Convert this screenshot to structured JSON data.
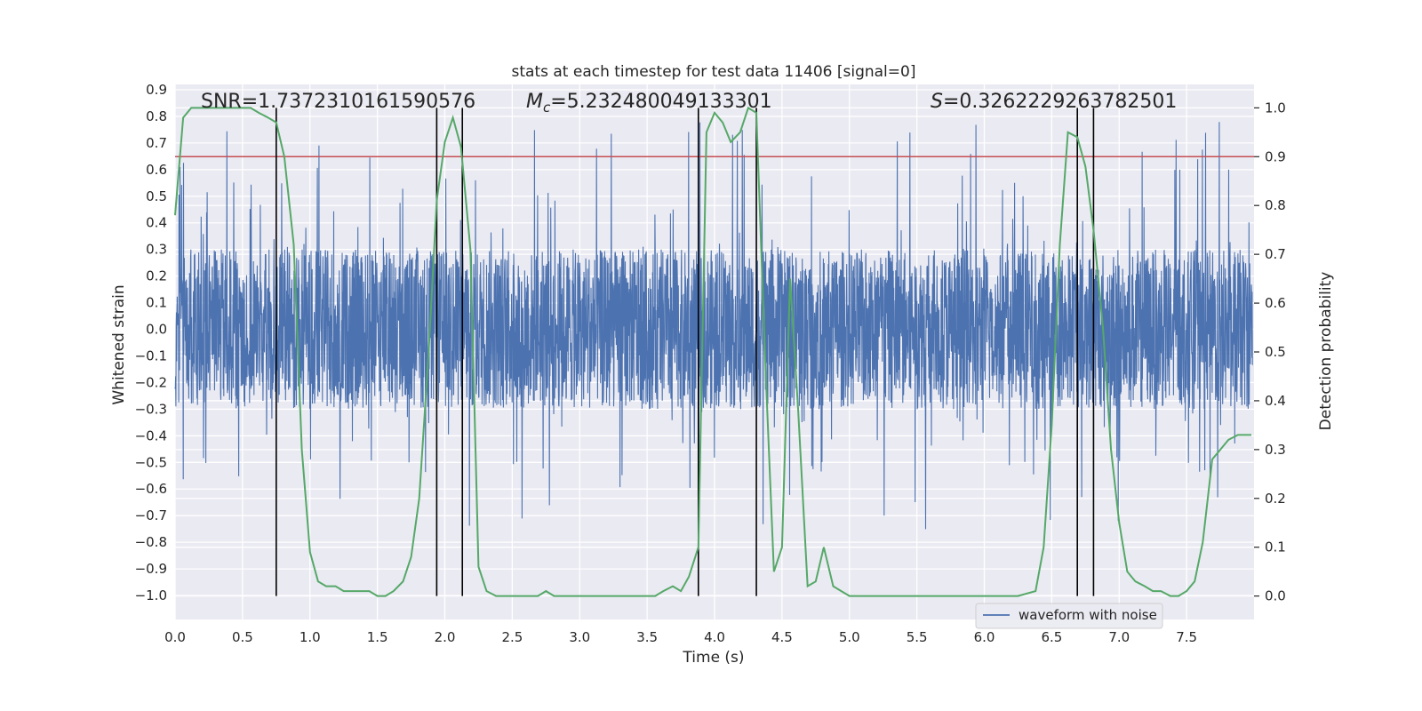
{
  "chart_data": {
    "type": "line",
    "title": "stats at each timestep for test data 11406 [signal=0]",
    "xlabel": "Time (s)",
    "ylabel": "Whitened strain",
    "y2label": "Detection probability",
    "xlim": [
      0.0,
      8.0
    ],
    "ylim": [
      -1.09,
      0.92
    ],
    "y2lim": [
      -0.048,
      1.048
    ],
    "x_ticks": [
      "0.0",
      "0.5",
      "1.0",
      "1.5",
      "2.0",
      "2.5",
      "3.0",
      "3.5",
      "4.0",
      "4.5",
      "5.0",
      "5.5",
      "6.0",
      "6.5",
      "7.0",
      "7.5"
    ],
    "x_tick_values": [
      0.0,
      0.5,
      1.0,
      1.5,
      2.0,
      2.5,
      3.0,
      3.5,
      4.0,
      4.5,
      5.0,
      5.5,
      6.0,
      6.5,
      7.0,
      7.5
    ],
    "y_ticks": [
      "0.9",
      "0.8",
      "0.7",
      "0.6",
      "0.5",
      "0.4",
      "0.3",
      "0.2",
      "0.1",
      "0.0",
      "−0.1",
      "−0.2",
      "−0.3",
      "−0.4",
      "−0.5",
      "−0.6",
      "−0.7",
      "−0.8",
      "−0.9",
      "−1.0"
    ],
    "y_tick_values": [
      0.9,
      0.8,
      0.7,
      0.6,
      0.5,
      0.4,
      0.3,
      0.2,
      0.1,
      0.0,
      -0.1,
      -0.2,
      -0.3,
      -0.4,
      -0.5,
      -0.6,
      -0.7,
      -0.8,
      -0.9,
      -1.0
    ],
    "y2_ticks": [
      "1.0",
      "0.9",
      "0.8",
      "0.7",
      "0.6",
      "0.5",
      "0.4",
      "0.3",
      "0.2",
      "0.1",
      "0.0"
    ],
    "y2_tick_values": [
      1.0,
      0.9,
      0.8,
      0.7,
      0.6,
      0.5,
      0.4,
      0.3,
      0.2,
      0.1,
      0.0
    ],
    "grid": true,
    "legend": {
      "position": "lower-right",
      "entries": [
        "waveform with noise"
      ]
    },
    "annotations": {
      "snr": "SNR=1.7372310161590576",
      "mc_symbol": "M",
      "mc_subscript": "c",
      "mc_value": "=5.232480049133301",
      "s_symbol": "S",
      "s_value": "=0.3262229263782501"
    },
    "threshold": {
      "y2": 0.9,
      "color": "#c44e52"
    },
    "vertical_lines_x": [
      0.75,
      1.94,
      2.13,
      3.88,
      4.31,
      6.69,
      6.81
    ],
    "vertical_lines_y2_range": [
      0.0,
      1.0
    ],
    "series": [
      {
        "name": "waveform with noise",
        "axis": "left",
        "color": "#4c72b0",
        "description_type": "dense noise",
        "core_range": [
          -0.28,
          0.28
        ],
        "spike_extent_typical": [
          -0.5,
          0.55
        ]
      },
      {
        "axis": "right",
        "color": "#55a868",
        "x": [
          0.0,
          0.06,
          0.12,
          0.19,
          0.25,
          0.31,
          0.38,
          0.44,
          0.5,
          0.56,
          0.62,
          0.69,
          0.75,
          0.81,
          0.88,
          0.94,
          1.0,
          1.06,
          1.12,
          1.19,
          1.25,
          1.31,
          1.38,
          1.44,
          1.5,
          1.56,
          1.62,
          1.69,
          1.75,
          1.81,
          1.88,
          1.94,
          2.0,
          2.06,
          2.12,
          2.19,
          2.25,
          2.31,
          2.38,
          2.44,
          2.5,
          2.56,
          2.62,
          2.69,
          2.75,
          2.81,
          2.88,
          2.94,
          3.0,
          3.06,
          3.12,
          3.19,
          3.25,
          3.31,
          3.38,
          3.44,
          3.5,
          3.56,
          3.62,
          3.69,
          3.75,
          3.81,
          3.88,
          3.94,
          4.0,
          4.06,
          4.12,
          4.19,
          4.25,
          4.31,
          4.38,
          4.44,
          4.5,
          4.56,
          4.62,
          4.69,
          4.75,
          4.81,
          4.88,
          4.94,
          5.0,
          5.5,
          6.0,
          6.25,
          6.38,
          6.44,
          6.5,
          6.56,
          6.62,
          6.69,
          6.75,
          6.81,
          6.88,
          6.94,
          7.0,
          7.06,
          7.12,
          7.19,
          7.25,
          7.31,
          7.38,
          7.44,
          7.5,
          7.56,
          7.62,
          7.69,
          7.75,
          7.81,
          7.88,
          7.94,
          7.98
        ],
        "values": [
          0.78,
          0.98,
          1.0,
          1.0,
          1.0,
          1.0,
          1.0,
          1.0,
          1.0,
          1.0,
          0.99,
          0.98,
          0.97,
          0.9,
          0.72,
          0.3,
          0.09,
          0.03,
          0.02,
          0.02,
          0.01,
          0.01,
          0.01,
          0.01,
          0.0,
          0.0,
          0.01,
          0.03,
          0.08,
          0.2,
          0.5,
          0.81,
          0.93,
          0.98,
          0.92,
          0.71,
          0.06,
          0.01,
          0.0,
          0.0,
          0.0,
          0.0,
          0.0,
          0.0,
          0.01,
          0.0,
          0.0,
          0.0,
          0.0,
          0.0,
          0.0,
          0.0,
          0.0,
          0.0,
          0.0,
          0.0,
          0.0,
          0.0,
          0.01,
          0.02,
          0.01,
          0.04,
          0.1,
          0.95,
          0.99,
          0.97,
          0.93,
          0.95,
          1.0,
          0.99,
          0.45,
          0.05,
          0.1,
          0.65,
          0.38,
          0.02,
          0.03,
          0.1,
          0.02,
          0.01,
          0.0,
          0.0,
          0.0,
          0.0,
          0.01,
          0.1,
          0.35,
          0.72,
          0.95,
          0.94,
          0.88,
          0.75,
          0.55,
          0.3,
          0.15,
          0.05,
          0.03,
          0.02,
          0.01,
          0.01,
          0.0,
          0.0,
          0.01,
          0.03,
          0.11,
          0.28,
          0.3,
          0.32,
          0.33,
          0.33,
          0.33
        ]
      }
    ]
  }
}
